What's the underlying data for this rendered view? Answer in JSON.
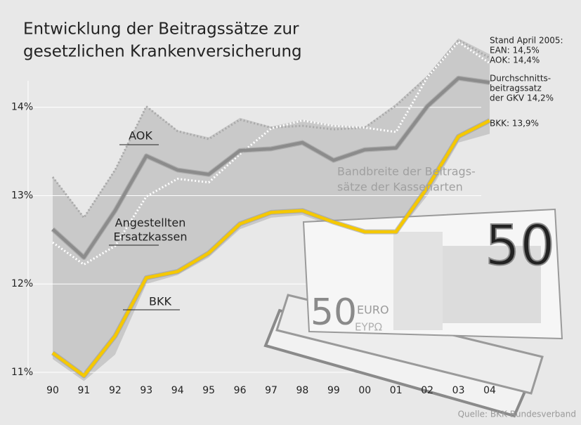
{
  "chart_data": {
    "type": "line",
    "title": [
      "Entwicklung der Beitragssätze zur",
      "gesetzlichen Krankenversicherung"
    ],
    "categories": [
      "90",
      "91",
      "92",
      "93",
      "94",
      "95",
      "96",
      "97",
      "98",
      "99",
      "00",
      "01",
      "02",
      "03",
      "04"
    ],
    "ylim": [
      10.92,
      14.3
    ],
    "yticks": [
      {
        "value": 11,
        "label": "11%"
      },
      {
        "value": 12,
        "label": "12%"
      },
      {
        "value": 13,
        "label": "13%"
      },
      {
        "value": 14,
        "label": "14%"
      }
    ],
    "grid": true,
    "band": {
      "label": [
        "Bandbreite der Beitrags-",
        "sätze der Kassenarten"
      ],
      "color": "#c9c9c9",
      "upper": [
        13.22,
        12.76,
        13.3,
        14.02,
        13.74,
        13.66,
        13.88,
        13.78,
        13.86,
        13.8,
        13.78,
        14.04,
        14.36,
        14.78,
        14.6
      ],
      "lower": [
        11.15,
        10.9,
        11.2,
        12.0,
        12.1,
        12.3,
        12.62,
        12.75,
        12.78,
        12.65,
        12.55,
        12.55,
        13.0,
        13.6,
        13.7
      ]
    },
    "series": [
      {
        "name": [
          "AOK"
        ],
        "color": "#a9a9a9",
        "dashed": true,
        "values": [
          13.21,
          12.75,
          13.29,
          14.01,
          13.73,
          13.64,
          13.86,
          13.77,
          13.79,
          13.75,
          13.77,
          14.02,
          14.34,
          14.76,
          14.56
        ]
      },
      {
        "name": [
          "Angestellten",
          "Ersatzkassen"
        ],
        "color": "#ffffff",
        "dashed": true,
        "values": [
          12.47,
          12.22,
          12.43,
          12.99,
          13.19,
          13.15,
          13.47,
          13.76,
          13.85,
          13.79,
          13.77,
          13.72,
          14.34,
          14.74,
          14.5
        ]
      },
      {
        "name": [
          "Durchschnitts-",
          "beitragssatz",
          "der GKV 14,2%"
        ],
        "color": "#8c8c8c",
        "dashed": false,
        "values": [
          12.62,
          12.3,
          12.83,
          13.45,
          13.29,
          13.24,
          13.51,
          13.53,
          13.6,
          13.4,
          13.52,
          13.54,
          14.01,
          14.33,
          14.28
        ]
      },
      {
        "name": [
          "BKK"
        ],
        "color": "#f5c800",
        "dashed": false,
        "values": [
          11.22,
          10.96,
          11.41,
          12.07,
          12.14,
          12.35,
          12.68,
          12.81,
          12.83,
          12.7,
          12.59,
          12.59,
          13.09,
          13.67,
          13.85
        ]
      }
    ],
    "annotations": [
      "Stand April 2005:",
      "EAN: 14,5%",
      "AOK: 14,4%",
      "BKK: 13,9%"
    ],
    "banknote": {
      "denomination": "50",
      "currency": "EURO",
      "currency_greek": "ΕΥΡΩ"
    },
    "source": "Quelle: BKK Bundesverband"
  }
}
